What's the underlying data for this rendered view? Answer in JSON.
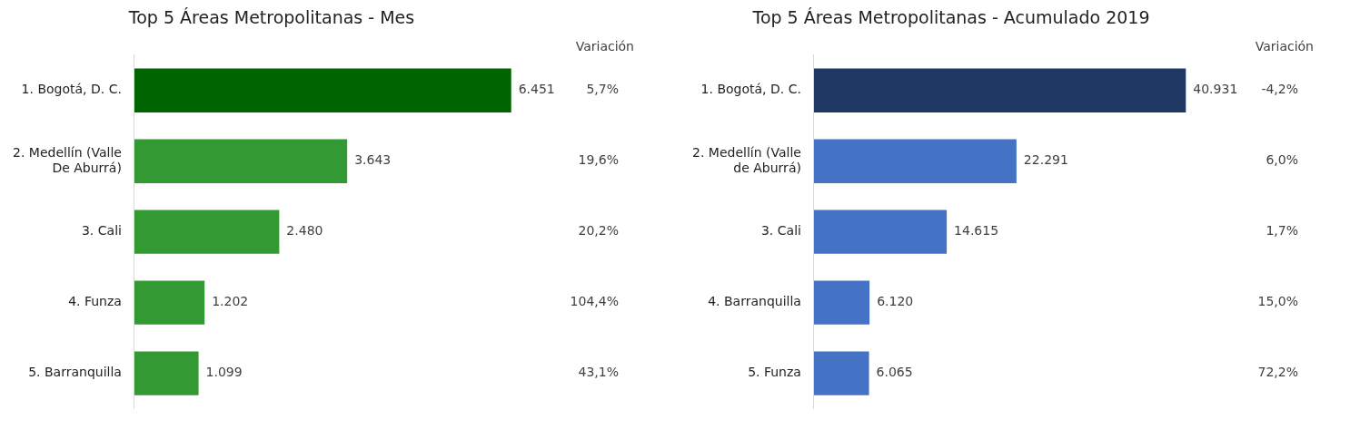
{
  "chart_data": [
    {
      "type": "bar",
      "orientation": "horizontal",
      "title": "Top 5 Áreas Metropolitanas - Mes",
      "categories": [
        "1. Bogotá, D. C.",
        "2. Medellín (Valle De Aburrá)",
        "3. Cali",
        "4. Funza",
        "5. Barranquilla"
      ],
      "values": [
        6451,
        3643,
        2480,
        1202,
        1099
      ],
      "colors": [
        "#006400",
        "#339933",
        "#339933",
        "#339933",
        "#339933"
      ],
      "value_labels": [
        "6.451",
        "3.643",
        "2.480",
        "1.202",
        "1.099"
      ],
      "tick_labels": "y",
      "grid": false,
      "legend": false,
      "annotations": [
        "Variación",
        "5,7%",
        "19,6%",
        "20,2%",
        "104,4%",
        "43,1%"
      ]
    },
    {
      "type": "bar",
      "orientation": "horizontal",
      "title": "Top 5 Áreas Metropolitanas - Acumulado 2019",
      "categories": [
        "1. Bogotá, D. C.",
        "2. Medellín (Valle de Aburrá)",
        "3. Cali",
        "4. Barranquilla",
        "5. Funza"
      ],
      "values": [
        40931,
        22291,
        14615,
        6120,
        6065
      ],
      "colors": [
        "#203864",
        "#4472c4",
        "#4472c4",
        "#4472c4",
        "#4472c4"
      ],
      "value_labels": [
        "40.931",
        "22.291",
        "14.615",
        "6.120",
        "6.065"
      ],
      "tick_labels": "y",
      "grid": false,
      "legend": false,
      "annotations": [
        "Variación",
        "-4,2%",
        "6,0%",
        "1,7%",
        "15,0%",
        "72,2%"
      ]
    }
  ]
}
